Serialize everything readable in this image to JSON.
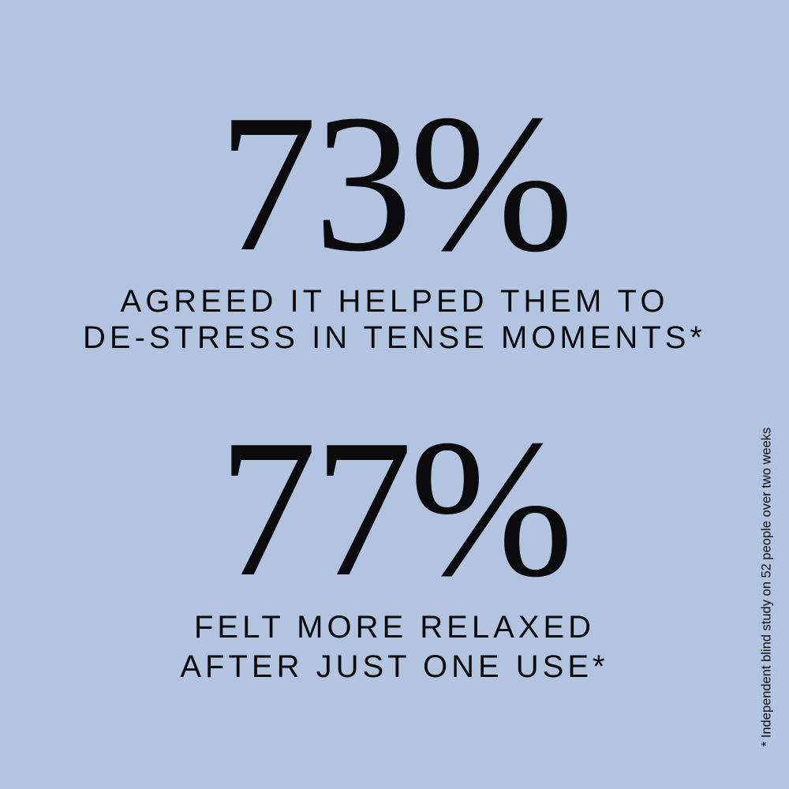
{
  "stats": [
    {
      "value": "73%",
      "caption_line1": "AGREED IT HELPED THEM TO",
      "caption_line2": "DE-STRESS IN TENSE MOMENTS*"
    },
    {
      "value": "77%",
      "caption_line1": "FELT MORE RELAXED",
      "caption_line2": "AFTER JUST ONE USE*"
    }
  ],
  "footnote": "* Independent blind study on 52 people over two weeks",
  "colors": {
    "background": "#b3c4e1",
    "text": "#0b0b0d"
  }
}
